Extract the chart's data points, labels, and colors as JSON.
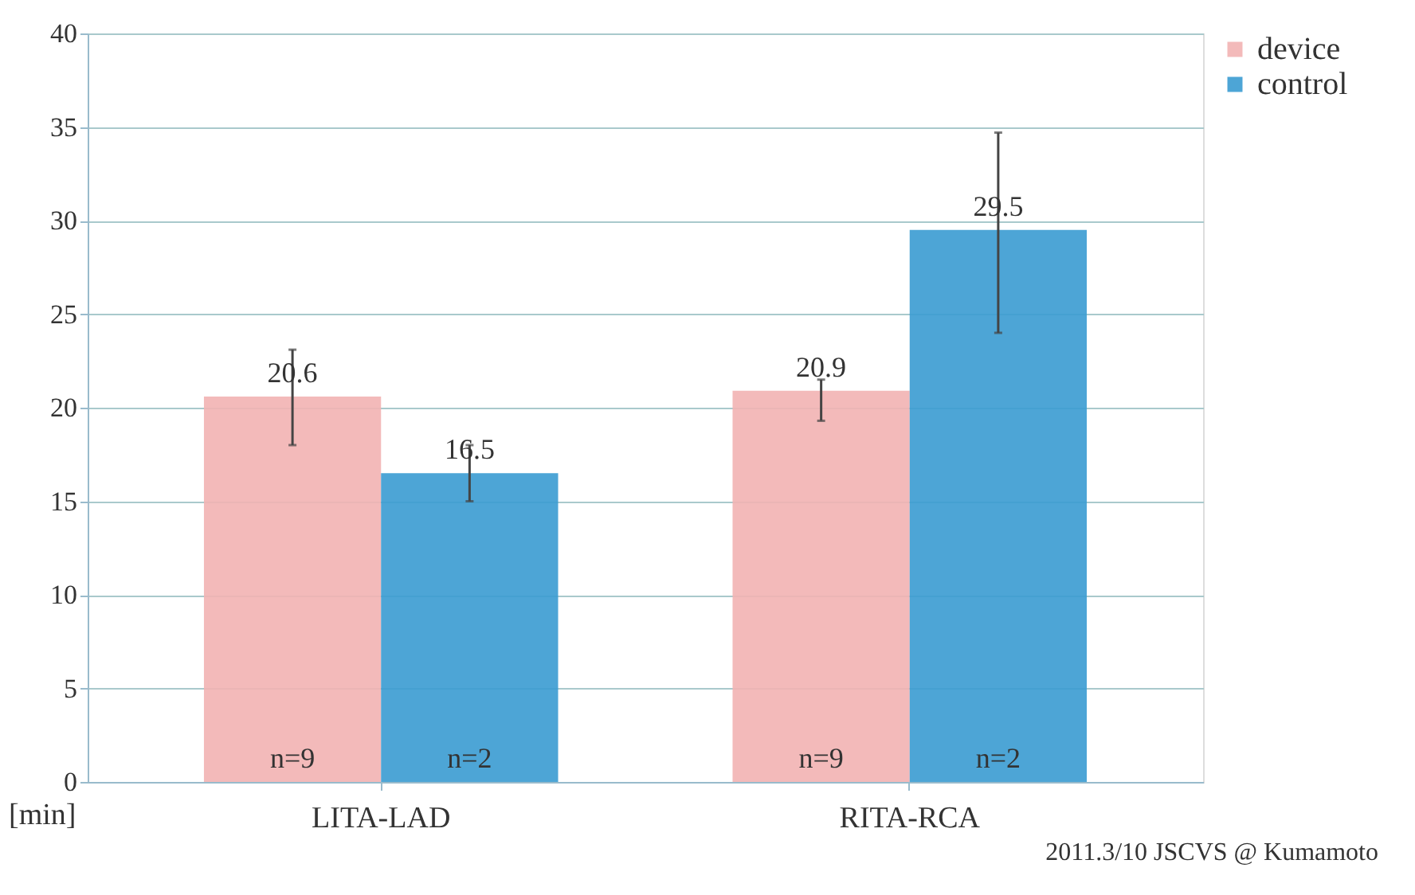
{
  "chart_data": {
    "type": "bar",
    "categories": [
      "LITA-LAD",
      "RITA-RCA"
    ],
    "ylabel": "[min]",
    "series": [
      {
        "name": "device",
        "color": "#f2b3b3",
        "values": [
          20.6,
          20.9
        ],
        "errors": [
          [
            18.0,
            23.1
          ],
          [
            19.3,
            21.5
          ]
        ]
      },
      {
        "name": "control",
        "color": "#3a9bd2",
        "values": [
          16.5,
          29.5
        ],
        "errors": [
          [
            15.0,
            18.0
          ],
          [
            24.0,
            34.7
          ]
        ]
      }
    ],
    "data_labels": true,
    "ylim": [
      0,
      40
    ],
    "yticks": [
      0,
      5,
      10,
      15,
      20,
      25,
      30,
      35,
      40
    ],
    "grid": "y",
    "legend": "right",
    "annotations": [
      {
        "text": "n=9",
        "x": "LITA-LAD",
        "y": 0
      },
      {
        "text": "n=2",
        "x": "LITA-LAD",
        "y": 0
      },
      {
        "text": "n=9",
        "x": "RITA-RCA",
        "y": 0
      },
      {
        "text": "n=2",
        "x": "RITA-RCA",
        "y": 0
      },
      "2011.3/10 JSCVS @ Kumamoto"
    ]
  }
}
